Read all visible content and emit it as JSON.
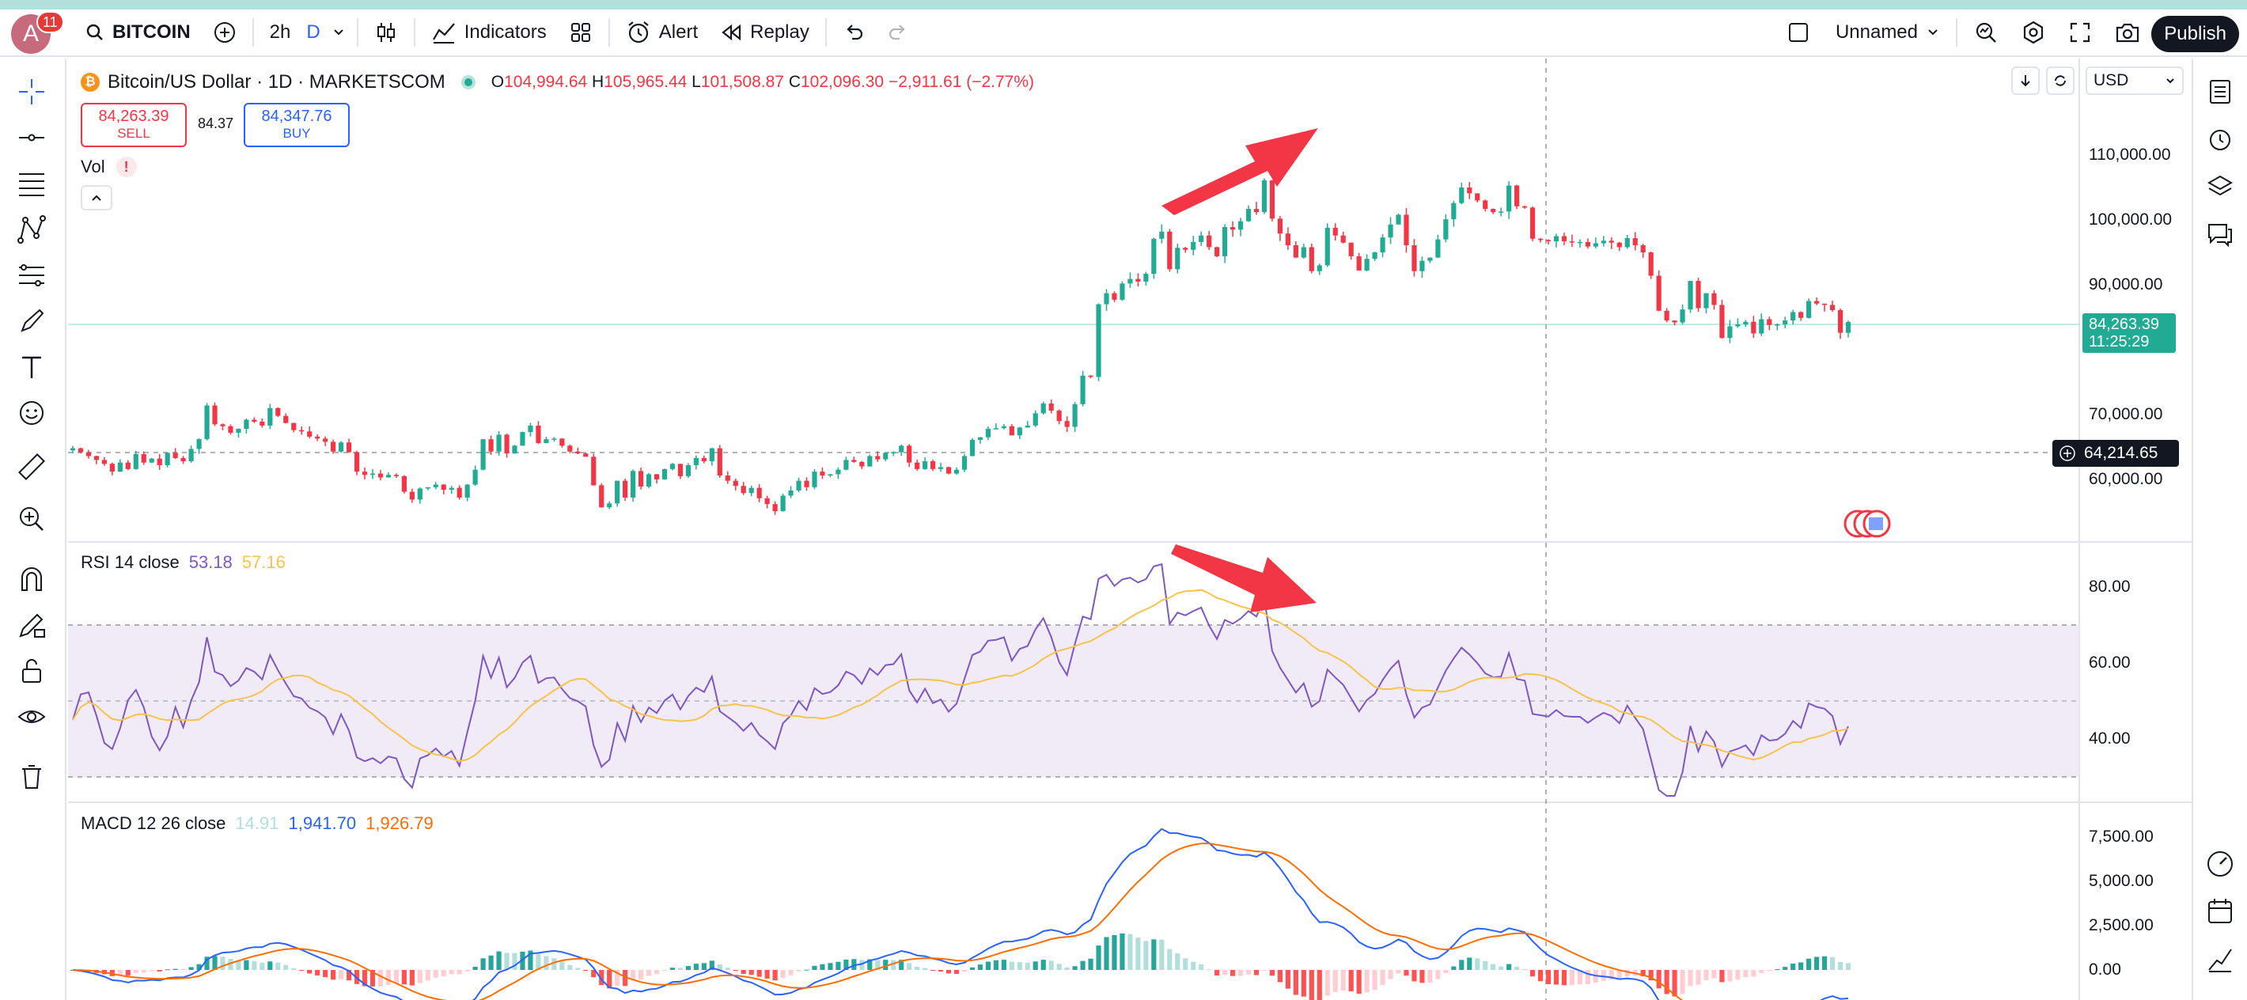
{
  "topbar": {
    "avatar_letter": "A",
    "notification_count": "11",
    "symbol": "BITCOIN",
    "interval": "2h",
    "interval_unit": "D",
    "indicators_label": "Indicators",
    "alert_label": "Alert",
    "replay_label": "Replay",
    "layout_name": "Unnamed",
    "publish_label": "Publish"
  },
  "legend": {
    "title": "Bitcoin/US Dollar · 1D · MARKETSCOM",
    "o_label": "O",
    "o_value": "104,994.64",
    "h_label": "H",
    "h_value": "105,965.44",
    "l_label": "L",
    "l_value": "101,508.87",
    "c_label": "C",
    "c_value": "102,096.30",
    "change": "−2,911.61 (−2.77%)",
    "coin_symbol": "₿"
  },
  "trade": {
    "sell_price": "84,263.39",
    "sell_label": "SELL",
    "spread": "84.37",
    "buy_price": "84,347.76",
    "buy_label": "BUY"
  },
  "volume": {
    "label": "Vol",
    "warning": "!"
  },
  "currency": "USD",
  "price_axis": {
    "labels": [
      "110,000.00",
      "100,000.00",
      "90,000.00",
      "70,000.00",
      "60,000.00"
    ],
    "last_price": "84,263.39",
    "countdown": "11:25:29",
    "crosshair_price": "64,214.65"
  },
  "rsi": {
    "title": "RSI 14 close",
    "value": "53.18",
    "ma_value": "57.16",
    "axis": [
      "80.00",
      "60.00",
      "40.00"
    ]
  },
  "macd": {
    "title": "MACD 12 26 close",
    "hist": "14.91",
    "macd": "1,941.70",
    "signal": "1,926.79",
    "axis": [
      "7,500.00",
      "5,000.00",
      "2,500.00",
      "0.00"
    ]
  },
  "colors": {
    "up": "#22ab94",
    "down": "#f23645",
    "rsi_line": "#7e57c2",
    "rsi_ma": "#f7c34d",
    "macd_line": "#2962ff",
    "signal_line": "#ff6d00",
    "arrow": "#f23645"
  },
  "chart_data": {
    "type": "candlestick",
    "price_range": [
      55000,
      115000
    ],
    "closes": [
      64800,
      64200,
      63600,
      63000,
      62400,
      61200,
      62600,
      61600,
      63900,
      62600,
      63200,
      62200,
      64100,
      63300,
      62800,
      64700,
      66200,
      71400,
      68500,
      68200,
      67200,
      67800,
      69200,
      68900,
      68300,
      71000,
      69800,
      68700,
      67600,
      67400,
      66600,
      66300,
      65800,
      64300,
      65700,
      64200,
      61200,
      60700,
      60900,
      60300,
      60700,
      60500,
      58100,
      56900,
      58600,
      58800,
      59200,
      58400,
      58700,
      57200,
      59200,
      61500,
      66200,
      64300,
      66900,
      64000,
      65200,
      67300,
      68300,
      65600,
      66200,
      66300,
      65200,
      64300,
      64000,
      63500,
      59100,
      55700,
      56300,
      59800,
      57200,
      61300,
      58900,
      60800,
      60000,
      61600,
      62400,
      60500,
      62200,
      63300,
      62800,
      64800,
      60600,
      59800,
      59000,
      57900,
      58700,
      57100,
      56200,
      55100,
      57500,
      58300,
      59800,
      58800,
      61200,
      60600,
      60800,
      61500,
      63000,
      62700,
      62000,
      63600,
      63100,
      64100,
      64200,
      65200,
      62600,
      61600,
      62800,
      61600,
      61900,
      60900,
      61500,
      63600,
      66100,
      66500,
      67800,
      67900,
      68200,
      66800,
      68000,
      68300,
      70200,
      71700,
      70600,
      69000,
      68100,
      71600,
      76000,
      75800,
      87000,
      88700,
      87700,
      90200,
      90900,
      90500,
      91700,
      97100,
      98200,
      92400,
      95700,
      95400,
      96600,
      97600,
      95800,
      94400,
      98900,
      98500,
      99800,
      101700,
      101200,
      106100,
      100200,
      97900,
      96100,
      94200,
      95800,
      92100,
      93000,
      98800,
      97600,
      96500,
      94400,
      92200,
      94000,
      95000,
      97300,
      99300,
      100800,
      96100,
      92100,
      93700,
      94200,
      97000,
      100100,
      102600,
      105000,
      104100,
      103000,
      101700,
      101200,
      101300,
      105300,
      102100,
      101900,
      97100,
      96900,
      96700,
      97500,
      96700,
      96600,
      96600,
      95900,
      96400,
      96800,
      96500,
      95800,
      97200,
      96100,
      95000,
      91400,
      86000,
      84500,
      84200,
      86200,
      90600,
      86400,
      88700,
      86900,
      81800,
      83600,
      83900,
      84300,
      82500,
      84700,
      83800,
      83900,
      84500,
      85800,
      84900,
      87500,
      87100,
      86900,
      86100,
      82600,
      84263
    ],
    "rsi_range": [
      25,
      90
    ],
    "rsi_overbought": 70,
    "rsi_oversold": 30,
    "macd_range": [
      -1500,
      8500
    ]
  }
}
